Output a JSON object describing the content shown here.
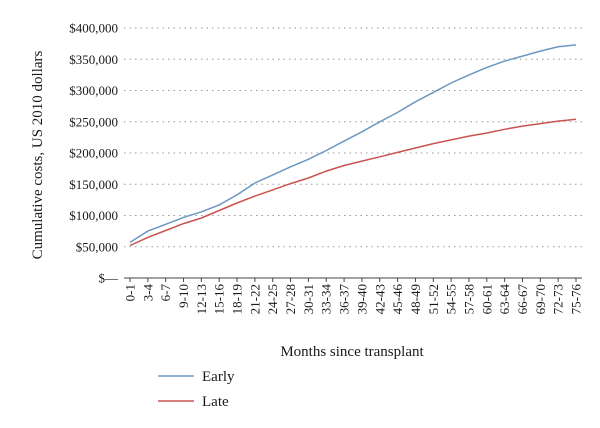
{
  "chart_data": {
    "type": "line",
    "ylabel": "Cumulative costs, US 2010 dollars",
    "xlabel": "Months since transplant",
    "ylim": [
      0,
      400000
    ],
    "y_ticks": [
      "$—",
      "$50,000",
      "$100,000",
      "$150,000",
      "$200,000",
      "$250,000",
      "$300,000",
      "$350,000",
      "$400,000"
    ],
    "y_tick_values": [
      0,
      50000,
      100000,
      150000,
      200000,
      250000,
      300000,
      350000,
      400000
    ],
    "grid": "horizontal-dotted",
    "legend_position": "bottom-left",
    "categories": [
      "0-1",
      "3-4",
      "6-7",
      "9-10",
      "12-13",
      "15-16",
      "18-19",
      "21-22",
      "24-25",
      "27-28",
      "30-31",
      "33-34",
      "36-37",
      "39-40",
      "42-43",
      "45-46",
      "48-49",
      "51-52",
      "54-55",
      "57-58",
      "60-61",
      "63-64",
      "66-67",
      "69-70",
      "72-73",
      "75-76"
    ],
    "series": [
      {
        "name": "Early",
        "color": "#6b97c2",
        "values": [
          57000,
          75000,
          86000,
          97000,
          106000,
          117000,
          133000,
          152000,
          165000,
          178000,
          190000,
          204000,
          219000,
          234000,
          250000,
          265000,
          282000,
          297000,
          312000,
          325000,
          337000,
          347000,
          355000,
          363000,
          370000,
          373000
        ]
      },
      {
        "name": "Late",
        "color": "#c9544e",
        "values": [
          52000,
          65000,
          76000,
          87000,
          96000,
          108000,
          120000,
          131000,
          141000,
          151000,
          160000,
          171000,
          180000,
          187000,
          194000,
          201000,
          208000,
          215000,
          221000,
          227000,
          232000,
          238000,
          243000,
          247000,
          251000,
          254000
        ]
      }
    ]
  }
}
